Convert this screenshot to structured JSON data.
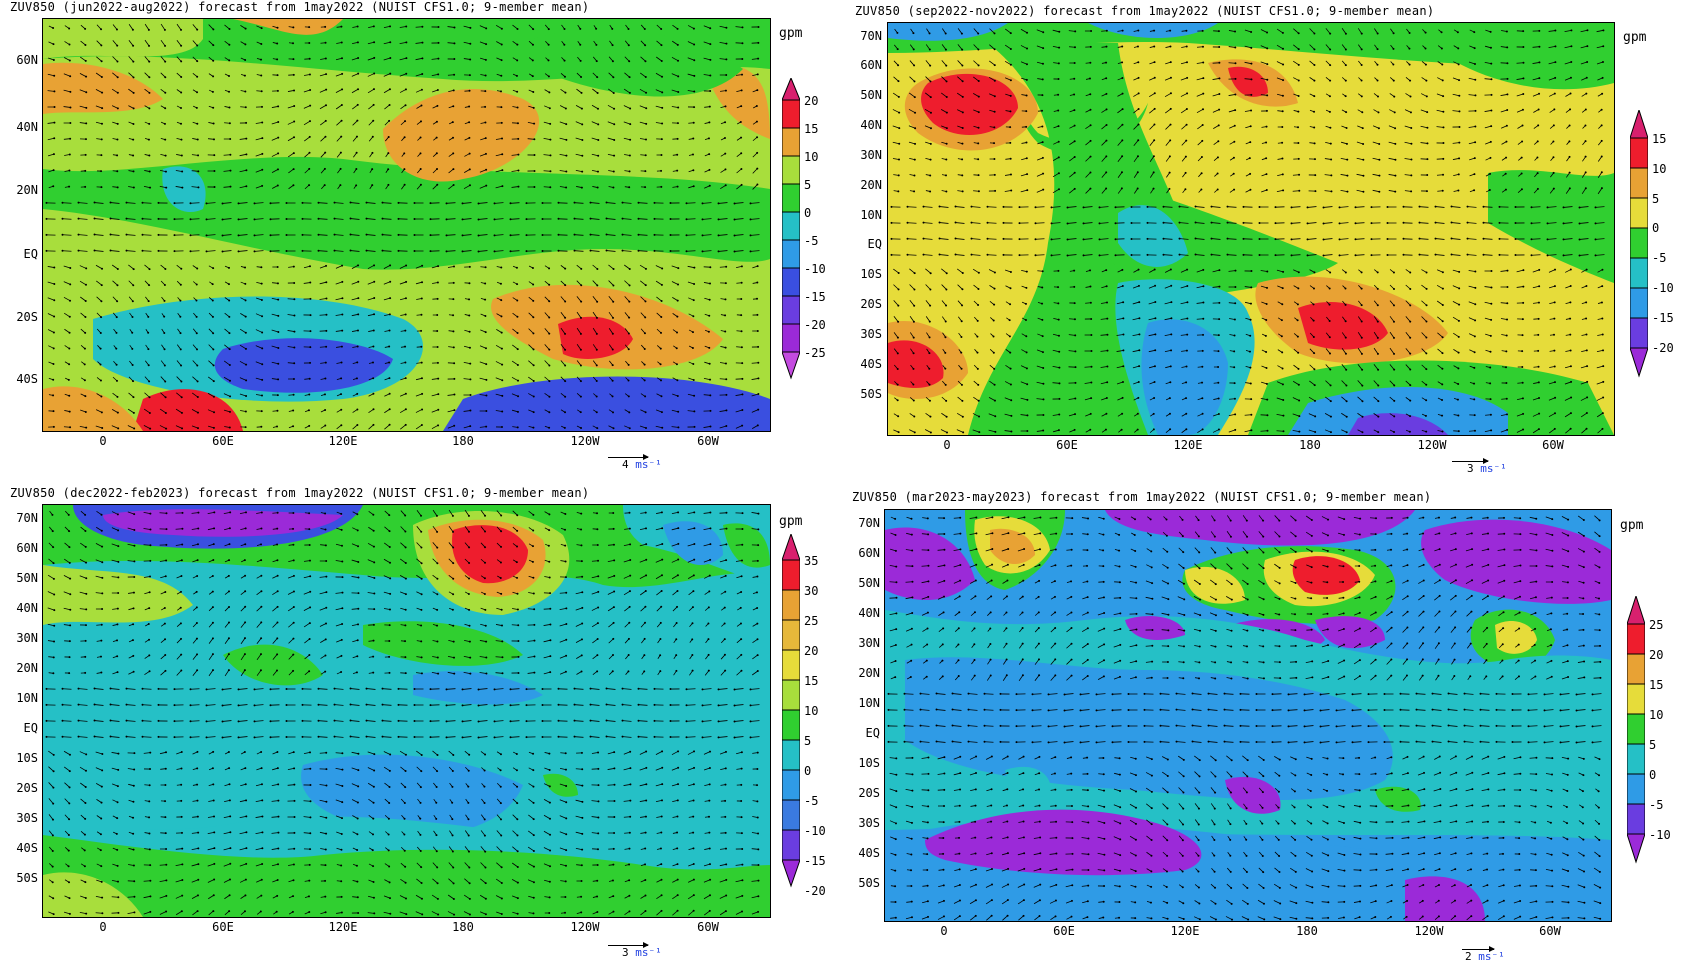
{
  "colors": {
    "purple": "#9b2ad8",
    "dark_blue": "#3a4fe0",
    "blue": "#2f9be6",
    "cyan": "#25c0c6",
    "green": "#30cf30",
    "light_green": "#a8de3c",
    "yellow": "#e6dc3a",
    "orange": "#e8a234",
    "red": "#ee1d2d",
    "magenta": "#d8206e"
  },
  "panels": [
    {
      "title": "ZUV850 (jun2022-aug2022) forecast from 1may2022 (NUIST CFS1.0; 9-member mean)",
      "unit": "gpm",
      "lat_labels": [
        "60N",
        "40N",
        "20N",
        "EQ",
        "20S",
        "40S"
      ],
      "lon_labels": [
        "0",
        "60E",
        "120E",
        "180",
        "120W",
        "60W"
      ],
      "colorbar_labels": [
        "20",
        "15",
        "10",
        "5",
        "0",
        "-5",
        "-10",
        "-15",
        "-20",
        "-25"
      ],
      "ref_vector_value": "4",
      "ref_vector_unit": "ms⁻¹"
    },
    {
      "title": "ZUV850 (sep2022-nov2022) forecast from 1may2022 (NUIST CFS1.0; 9-member mean)",
      "unit": "gpm",
      "lat_labels": [
        "70N",
        "60N",
        "50N",
        "40N",
        "30N",
        "20N",
        "10N",
        "EQ",
        "10S",
        "20S",
        "30S",
        "40S",
        "50S"
      ],
      "lon_labels": [
        "0",
        "60E",
        "120E",
        "180",
        "120W",
        "60W"
      ],
      "colorbar_labels": [
        "15",
        "10",
        "5",
        "0",
        "-5",
        "-10",
        "-15",
        "-20"
      ],
      "ref_vector_value": "3",
      "ref_vector_unit": "ms⁻¹"
    },
    {
      "title": "ZUV850 (dec2022-feb2023) forecast from 1may2022 (NUIST CFS1.0; 9-member mean)",
      "unit": "gpm",
      "lat_labels": [
        "70N",
        "60N",
        "50N",
        "40N",
        "30N",
        "20N",
        "10N",
        "EQ",
        "10S",
        "20S",
        "30S",
        "40S",
        "50S"
      ],
      "lon_labels": [
        "0",
        "60E",
        "120E",
        "180",
        "120W",
        "60W"
      ],
      "colorbar_labels": [
        "35",
        "30",
        "25",
        "20",
        "15",
        "10",
        "5",
        "0",
        "-5",
        "-10",
        "-15",
        "-20"
      ],
      "ref_vector_value": "3",
      "ref_vector_unit": "ms⁻¹"
    },
    {
      "title": "ZUV850 (mar2023-may2023) forecast from 1may2022 (NUIST CFS1.0; 9-member mean)",
      "unit": "gpm",
      "lat_labels": [
        "70N",
        "60N",
        "50N",
        "40N",
        "30N",
        "20N",
        "10N",
        "EQ",
        "10S",
        "20S",
        "30S",
        "40S",
        "50S"
      ],
      "lon_labels": [
        "0",
        "60E",
        "120E",
        "180",
        "120W",
        "60W"
      ],
      "colorbar_labels": [
        "25",
        "20",
        "15",
        "10",
        "5",
        "0",
        "-5",
        "-10"
      ],
      "ref_vector_value": "2",
      "ref_vector_unit": "ms⁻¹"
    }
  ]
}
